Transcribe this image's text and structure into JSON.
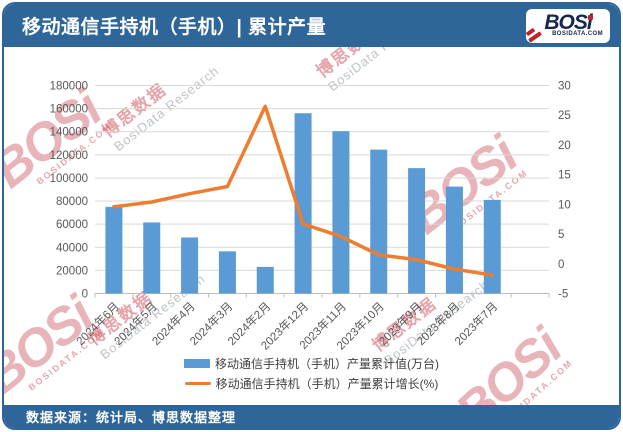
{
  "header": {
    "title": "移动通信手持机（手机）| 累计产量",
    "logo": {
      "text": "BOSi",
      "subtext": "BOSIDATA.COM"
    }
  },
  "footer": {
    "source": "数据来源：统计局、博思数据整理"
  },
  "watermark": {
    "cn": "博思数据",
    "en": "BosiData Research",
    "logo_text": "BOSi",
    "logo_sub": "BOSIDATA.COM"
  },
  "colors": {
    "theme_blue": "#2F6699",
    "bar_blue": "#5B9BD5",
    "line_orange": "#ED7D31",
    "axis_text": "#595959",
    "gridline": "#D9D9D9"
  },
  "chart_data": {
    "type": "bar+line combo",
    "title": "移动通信手持机（手机）| 累计产量",
    "categories": [
      "2024年6月",
      "2024年5月",
      "2024年4月",
      "2024年3月",
      "2024年2月",
      "2023年12月",
      "2023年11月",
      "2023年10月",
      "2023年9月",
      "2023年8月",
      "2023年7月"
    ],
    "series": [
      {
        "name": "移动通信手持机（手机）产量累计值(万台)",
        "type": "bar",
        "axis": "left",
        "color": "#5B9BD5",
        "values": [
          75000,
          61500,
          48500,
          36500,
          23000,
          156000,
          140500,
          124500,
          108500,
          92500,
          81000
        ]
      },
      {
        "name": "移动通信手持机（手机）产量累计增长(%)",
        "type": "line",
        "axis": "right",
        "color": "#ED7D31",
        "values": [
          9.6,
          10.4,
          11.8,
          13.0,
          26.5,
          6.7,
          4.6,
          1.5,
          0.7,
          -0.9,
          -1.9
        ]
      }
    ],
    "left_axis": {
      "min": 0,
      "max": 180000,
      "ticks": [
        0,
        20000,
        40000,
        60000,
        80000,
        100000,
        120000,
        140000,
        160000,
        180000
      ]
    },
    "right_axis": {
      "min": -5,
      "max": 30,
      "ticks": [
        -5,
        0,
        5,
        10,
        15,
        20,
        25,
        30
      ]
    },
    "grid": true,
    "legend_position": "bottom"
  }
}
